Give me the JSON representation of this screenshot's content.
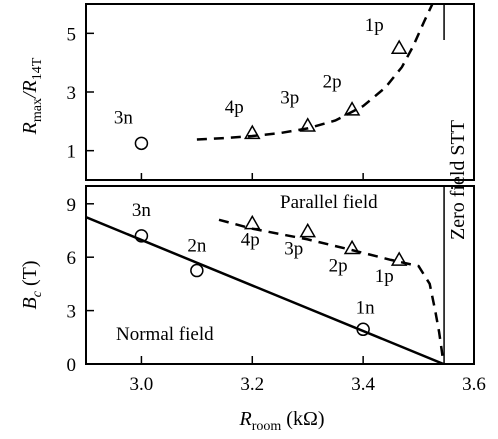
{
  "chart_data": [
    {
      "type": "scatter",
      "panel": "top",
      "ylabel": "R_max / R_14T",
      "ylabel_parts": {
        "main": "R",
        "sub1": "max",
        "slash": "/R",
        "sub2": "14T"
      },
      "xlim": [
        2.9,
        3.6
      ],
      "ylim": [
        0,
        6
      ],
      "y_ticks": [
        "1",
        "3",
        "5"
      ],
      "y_tick_values": [
        1,
        3,
        5
      ],
      "series": [
        {
          "marker": "circle",
          "points": [
            {
              "x": 3.0,
              "y": 1.25,
              "label": "3n"
            }
          ]
        },
        {
          "marker": "triangle",
          "points": [
            {
              "x": 3.2,
              "y": 1.6,
              "label": "4p"
            },
            {
              "x": 3.3,
              "y": 1.85,
              "label": "3p"
            },
            {
              "x": 3.38,
              "y": 2.4,
              "label": "2p"
            },
            {
              "x": 3.465,
              "y": 4.5,
              "label": "1p"
            }
          ]
        }
      ],
      "dashed_fit": {
        "x": [
          3.1,
          3.15,
          3.2,
          3.25,
          3.3,
          3.35,
          3.4,
          3.44,
          3.47,
          3.49,
          3.51,
          3.525
        ],
        "y": [
          1.38,
          1.43,
          1.5,
          1.6,
          1.76,
          2.03,
          2.52,
          3.15,
          3.85,
          4.55,
          5.4,
          6.0
        ]
      },
      "vertical_marker": {
        "x": 3.546,
        "label": "Zero field STT"
      }
    },
    {
      "type": "scatter",
      "panel": "bottom",
      "ylabel": "B_c (T)",
      "ylabel_parts": {
        "main": "B",
        "sub": "c",
        "unit": " (T)"
      },
      "xlabel": "R_room (kΩ)",
      "xlabel_parts": {
        "main": "R",
        "sub": "room",
        "unit": " (kΩ)"
      },
      "xlim": [
        2.9,
        3.6
      ],
      "ylim": [
        0,
        10
      ],
      "x_ticks": [
        "3.0",
        "3.2",
        "3.4",
        "3.6"
      ],
      "x_tick_values": [
        3.0,
        3.2,
        3.4,
        3.6
      ],
      "y_ticks": [
        "0",
        "3",
        "6",
        "9"
      ],
      "y_tick_values": [
        0,
        3,
        6,
        9
      ],
      "annotations": {
        "parallel": "Parallel field",
        "normal": "Normal field"
      },
      "series": [
        {
          "marker": "circle",
          "field": "normal",
          "points": [
            {
              "x": 3.0,
              "y": 7.2,
              "label": "3n"
            },
            {
              "x": 3.1,
              "y": 5.25,
              "label": "2n"
            },
            {
              "x": 3.4,
              "y": 1.95,
              "label": "1n"
            }
          ]
        },
        {
          "marker": "triangle",
          "field": "parallel",
          "points": [
            {
              "x": 3.2,
              "y": 7.9,
              "label": "4p"
            },
            {
              "x": 3.3,
              "y": 7.45,
              "label": "3p"
            },
            {
              "x": 3.38,
              "y": 6.5,
              "label": "2p"
            },
            {
              "x": 3.465,
              "y": 5.85,
              "label": "1p"
            }
          ]
        }
      ],
      "solid_fit": {
        "x": [
          2.9,
          3.545
        ],
        "y": [
          8.25,
          0
        ]
      },
      "dashed_fit": {
        "x": [
          3.14,
          3.2,
          3.3,
          3.38,
          3.45,
          3.5,
          3.52,
          3.53,
          3.537,
          3.542,
          3.545
        ],
        "y": [
          8.1,
          7.6,
          7.0,
          6.4,
          5.85,
          5.5,
          4.5,
          3.0,
          1.8,
          0.7,
          0
        ]
      },
      "vertical_marker": {
        "x": 3.546
      }
    }
  ]
}
